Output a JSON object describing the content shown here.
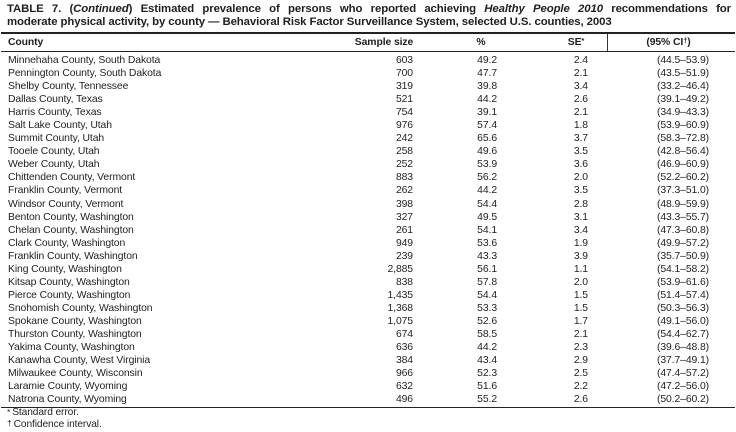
{
  "document": {
    "title": {
      "seg1": "TABLE 7. (",
      "seg2_italic": "Continued",
      "seg3": ") Estimated prevalence of persons who reported achieving ",
      "seg4_italic": "Healthy People 2010",
      "seg5": " recommendations for",
      "line2": "moderate physical activity, by county — Behavioral Risk Factor Surveillance System, selected U.S. counties, 2003"
    },
    "table": {
      "columns": {
        "county": "County",
        "sample_size": "Sample size",
        "percent": "%",
        "se_base": "SE",
        "se_sup": "*",
        "ci_base": "(95% CI",
        "ci_sup": "†",
        "ci_close": ")"
      },
      "rows": [
        [
          "Minnehaha County, South Dakota",
          "603",
          "49.2",
          "2.4",
          "(44.5–53.9)"
        ],
        [
          "Pennington County, South Dakota",
          "700",
          "47.7",
          "2.1",
          "(43.5–51.9)"
        ],
        [
          "Shelby County, Tennessee",
          "319",
          "39.8",
          "3.4",
          "(33.2–46.4)"
        ],
        [
          "Dallas County, Texas",
          "521",
          "44.2",
          "2.6",
          "(39.1–49.2)"
        ],
        [
          "Harris County, Texas",
          "754",
          "39.1",
          "2.1",
          "(34.9–43.3)"
        ],
        [
          "Salt Lake County, Utah",
          "976",
          "57.4",
          "1.8",
          "(53.9–60.9)"
        ],
        [
          "Summit County, Utah",
          "242",
          "65.6",
          "3.7",
          "(58.3–72.8)"
        ],
        [
          "Tooele County, Utah",
          "258",
          "49.6",
          "3.5",
          "(42.8–56.4)"
        ],
        [
          "Weber County, Utah",
          "252",
          "53.9",
          "3.6",
          "(46.9–60.9)"
        ],
        [
          "Chittenden County, Vermont",
          "883",
          "56.2",
          "2.0",
          "(52.2–60.2)"
        ],
        [
          "Franklin County, Vermont",
          "262",
          "44.2",
          "3.5",
          "(37.3–51.0)"
        ],
        [
          "Windsor County, Vermont",
          "398",
          "54.4",
          "2.8",
          "(48.9–59.9)"
        ],
        [
          "Benton County, Washington",
          "327",
          "49.5",
          "3.1",
          "(43.3–55.7)"
        ],
        [
          "Chelan County, Washington",
          "261",
          "54.1",
          "3.4",
          "(47.3–60.8)"
        ],
        [
          "Clark County, Washington",
          "949",
          "53.6",
          "1.9",
          "(49.9–57.2)"
        ],
        [
          "Franklin County, Washington",
          "239",
          "43.3",
          "3.9",
          "(35.7–50.9)"
        ],
        [
          "King County, Washington",
          "2,885",
          "56.1",
          "1.1",
          "(54.1–58.2)"
        ],
        [
          "Kitsap County, Washington",
          "838",
          "57.8",
          "2.0",
          "(53.9–61.6)"
        ],
        [
          "Pierce County, Washington",
          "1,435",
          "54.4",
          "1.5",
          "(51.4–57.4)"
        ],
        [
          "Snohomish County, Washington",
          "1,368",
          "53.3",
          "1.5",
          "(50.3–56.3)"
        ],
        [
          "Spokane County, Washington",
          "1,075",
          "52.6",
          "1.7",
          "(49.1–56.0)"
        ],
        [
          "Thurston County, Washington",
          "674",
          "58.5",
          "2.1",
          "(54.4–62.7)"
        ],
        [
          "Yakima County, Washington",
          "636",
          "44.2",
          "2.3",
          "(39.6–48.8)"
        ],
        [
          "Kanawha County, West Virginia",
          "384",
          "43.4",
          "2.9",
          "(37.7–49.1)"
        ],
        [
          "Milwaukee County, Wisconsin",
          "966",
          "52.3",
          "2.5",
          "(47.4–57.2)"
        ],
        [
          "Laramie County, Wyoming",
          "632",
          "51.6",
          "2.2",
          "(47.2–56.0)"
        ],
        [
          "Natrona County, Wyoming",
          "496",
          "55.2",
          "2.6",
          "(50.2–60.2)"
        ]
      ]
    },
    "footnotes": [
      {
        "marker": "*",
        "text": "Standard error."
      },
      {
        "marker": "†",
        "text": "Confidence interval."
      }
    ]
  }
}
